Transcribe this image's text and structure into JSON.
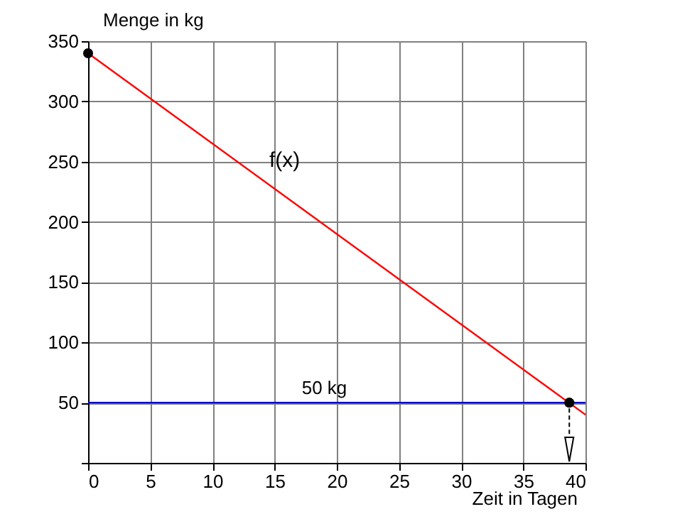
{
  "chart_data": {
    "type": "line",
    "xlabel": "Zeit in Tagen",
    "ylabel": "Menge in kg",
    "xlim": [
      0,
      40
    ],
    "ylim": [
      0,
      350
    ],
    "xticks": [
      0,
      5,
      10,
      15,
      20,
      25,
      30,
      35,
      40
    ],
    "yticks": [
      {
        "value": 0,
        "label": null
      },
      50,
      100,
      150,
      200,
      250,
      300,
      350
    ],
    "grid": true,
    "series": [
      {
        "name": "f(x)",
        "type": "line",
        "color": "#ff0000",
        "x": [
          0,
          40
        ],
        "values": [
          340,
          40
        ]
      },
      {
        "type": "scatter",
        "color": "#000000",
        "marker": "circle",
        "x": [
          0,
          38.7
        ],
        "values": [
          340,
          50
        ]
      }
    ],
    "ref_lines": [
      {
        "axis": "y",
        "value": 50,
        "label": "50 kg",
        "color": "#0000cc"
      }
    ]
  }
}
